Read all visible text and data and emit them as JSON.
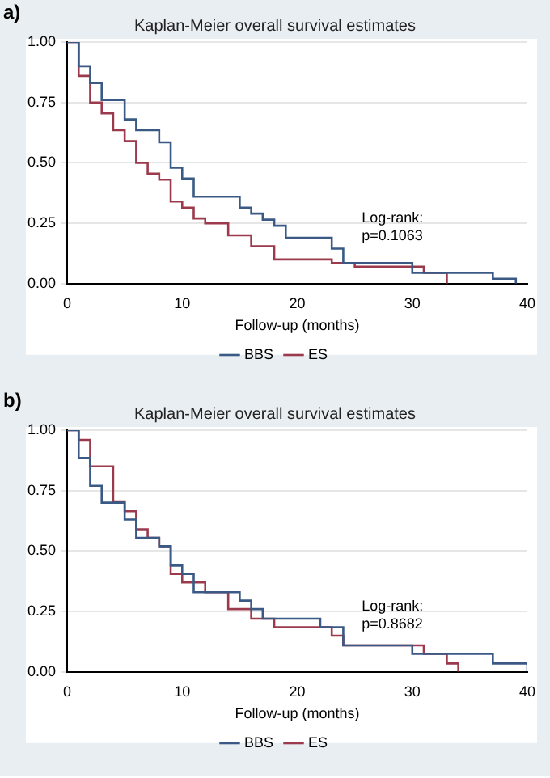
{
  "chart_data": [
    {
      "type": "step",
      "title": "Kaplan-Meier overall survival estimates",
      "xlabel": "Follow-up (months)",
      "annotations": [
        "a)",
        "Log-rank:\np=0.1063"
      ],
      "xlim": [
        0,
        40
      ],
      "xticks": [
        0,
        10,
        20,
        30,
        40
      ],
      "ylim": [
        0,
        1
      ],
      "yticks": [
        {
          "value": 0,
          "label": "0.00"
        },
        {
          "value": 0.25,
          "label": "0.25"
        },
        {
          "value": 0.5,
          "label": "0.50"
        },
        {
          "value": 0.75,
          "label": "0.75"
        },
        {
          "value": 1,
          "label": "1.00"
        }
      ],
      "grid": "y",
      "legend": "bottom",
      "series": [
        {
          "name": "BBS",
          "color": "#3a5a85",
          "x": [
            0,
            1,
            2,
            3,
            5,
            6,
            8,
            9,
            10,
            11,
            15,
            16,
            17,
            18,
            19,
            23,
            24,
            30,
            37,
            39
          ],
          "values": [
            1,
            0.9,
            0.83,
            0.76,
            0.68,
            0.635,
            0.585,
            0.48,
            0.435,
            0.36,
            0.315,
            0.29,
            0.265,
            0.24,
            0.19,
            0.145,
            0.085,
            0.045,
            0.02,
            0
          ]
        },
        {
          "name": "ES",
          "color": "#9b3a4c",
          "x": [
            0,
            1,
            2,
            3,
            4,
            5,
            6,
            7,
            8,
            9,
            10,
            11,
            12,
            14,
            16,
            18,
            23,
            25,
            31,
            33
          ],
          "values": [
            1,
            0.86,
            0.75,
            0.705,
            0.635,
            0.59,
            0.5,
            0.455,
            0.43,
            0.34,
            0.315,
            0.27,
            0.25,
            0.2,
            0.155,
            0.1,
            0.085,
            0.07,
            0.045,
            0
          ]
        }
      ]
    },
    {
      "type": "step",
      "title": "Kaplan-Meier overall survival estimates",
      "xlabel": "Follow-up (months)",
      "annotations": [
        "b)",
        "Log-rank:\np=0.8682"
      ],
      "xlim": [
        0,
        40
      ],
      "xticks": [
        0,
        10,
        20,
        30,
        40
      ],
      "ylim": [
        0,
        1
      ],
      "yticks": [
        {
          "value": 0,
          "label": "0.00"
        },
        {
          "value": 0.25,
          "label": "0.25"
        },
        {
          "value": 0.5,
          "label": "0.50"
        },
        {
          "value": 0.75,
          "label": "0.75"
        },
        {
          "value": 1,
          "label": "1.00"
        }
      ],
      "grid": "y",
      "legend": "bottom",
      "series": [
        {
          "name": "BBS",
          "color": "#3a5a85",
          "x": [
            0,
            1,
            2,
            3,
            5,
            6,
            8,
            9,
            10,
            11,
            15,
            16,
            17,
            22,
            24,
            30,
            37,
            40
          ],
          "values": [
            1,
            0.885,
            0.77,
            0.7,
            0.63,
            0.555,
            0.52,
            0.44,
            0.405,
            0.33,
            0.295,
            0.26,
            0.22,
            0.185,
            0.11,
            0.075,
            0.035,
            0
          ]
        },
        {
          "name": "ES",
          "color": "#9b3a4c",
          "x": [
            0,
            1,
            2,
            4,
            5,
            6,
            7,
            8,
            9,
            10,
            12,
            14,
            16,
            18,
            23,
            24,
            31,
            33,
            34
          ],
          "values": [
            1,
            0.96,
            0.85,
            0.705,
            0.665,
            0.59,
            0.555,
            0.52,
            0.405,
            0.37,
            0.33,
            0.26,
            0.22,
            0.185,
            0.15,
            0.11,
            0.075,
            0.035,
            0
          ]
        }
      ]
    }
  ]
}
